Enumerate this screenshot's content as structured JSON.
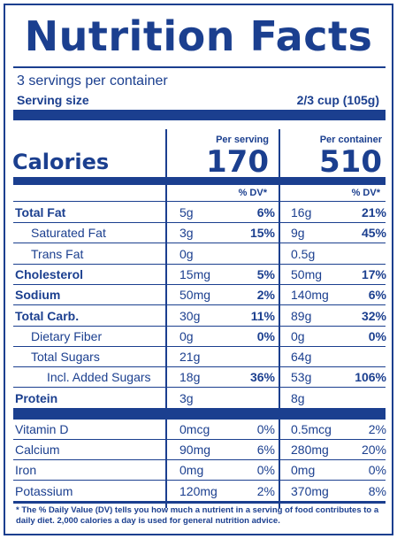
{
  "title": "Nutrition Facts",
  "servings_per_container": "3 servings per container",
  "serving_size": {
    "label": "Serving size",
    "value": "2/3 cup (105g)"
  },
  "columns": {
    "per_serving": "Per serving",
    "per_container": "Per container"
  },
  "calories": {
    "label": "Calories",
    "per_serving": "170",
    "per_container": "510"
  },
  "dv_header": "% DV*",
  "nutrients": [
    {
      "name": "Total Fat",
      "bold": true,
      "indent": 0,
      "amt1": "5g",
      "dv1": "6%",
      "amt2": "16g",
      "dv2": "21%"
    },
    {
      "name": "Saturated Fat",
      "bold": false,
      "indent": 1,
      "amt1": "3g",
      "dv1": "15%",
      "amt2": "9g",
      "dv2": "45%"
    },
    {
      "name": "Trans Fat",
      "bold": false,
      "indent": 1,
      "amt1": "0g",
      "dv1": "",
      "amt2": "0.5g",
      "dv2": ""
    },
    {
      "name": "Cholesterol",
      "bold": true,
      "indent": 0,
      "amt1": "15mg",
      "dv1": "5%",
      "amt2": "50mg",
      "dv2": "17%"
    },
    {
      "name": "Sodium",
      "bold": true,
      "indent": 0,
      "amt1": "50mg",
      "dv1": "2%",
      "amt2": "140mg",
      "dv2": "6%"
    },
    {
      "name": "Total Carb.",
      "bold": true,
      "indent": 0,
      "amt1": "30g",
      "dv1": "11%",
      "amt2": "89g",
      "dv2": "32%"
    },
    {
      "name": "Dietary Fiber",
      "bold": false,
      "indent": 1,
      "amt1": "0g",
      "dv1": "0%",
      "amt2": "0g",
      "dv2": "0%"
    },
    {
      "name": "Total Sugars",
      "bold": false,
      "indent": 1,
      "amt1": "21g",
      "dv1": "",
      "amt2": "64g",
      "dv2": ""
    },
    {
      "name": "Incl. Added Sugars",
      "bold": false,
      "indent": 2,
      "amt1": "18g",
      "dv1": "36%",
      "amt2": "53g",
      "dv2": "106%"
    },
    {
      "name": "Protein",
      "bold": true,
      "indent": 0,
      "amt1": "3g",
      "dv1": "",
      "amt2": "8g",
      "dv2": ""
    }
  ],
  "vitamins": [
    {
      "name": "Vitamin D",
      "amt1": "0mcg",
      "dv1": "0%",
      "amt2": "0.5mcg",
      "dv2": "2%"
    },
    {
      "name": "Calcium",
      "amt1": "90mg",
      "dv1": "6%",
      "amt2": "280mg",
      "dv2": "20%"
    },
    {
      "name": "Iron",
      "amt1": "0mg",
      "dv1": "0%",
      "amt2": "0mg",
      "dv2": "0%"
    },
    {
      "name": "Potassium",
      "amt1": "120mg",
      "dv1": "2%",
      "amt2": "370mg",
      "dv2": "8%"
    }
  ],
  "footnote": "* The % Daily Value (DV) tells you how much a nutrient in a serving of food contributes to a daily diet. 2,000 calories a day is used for general nutrition advice.",
  "colors": {
    "ink": "#1b3f8f",
    "background": "#ffffff"
  }
}
